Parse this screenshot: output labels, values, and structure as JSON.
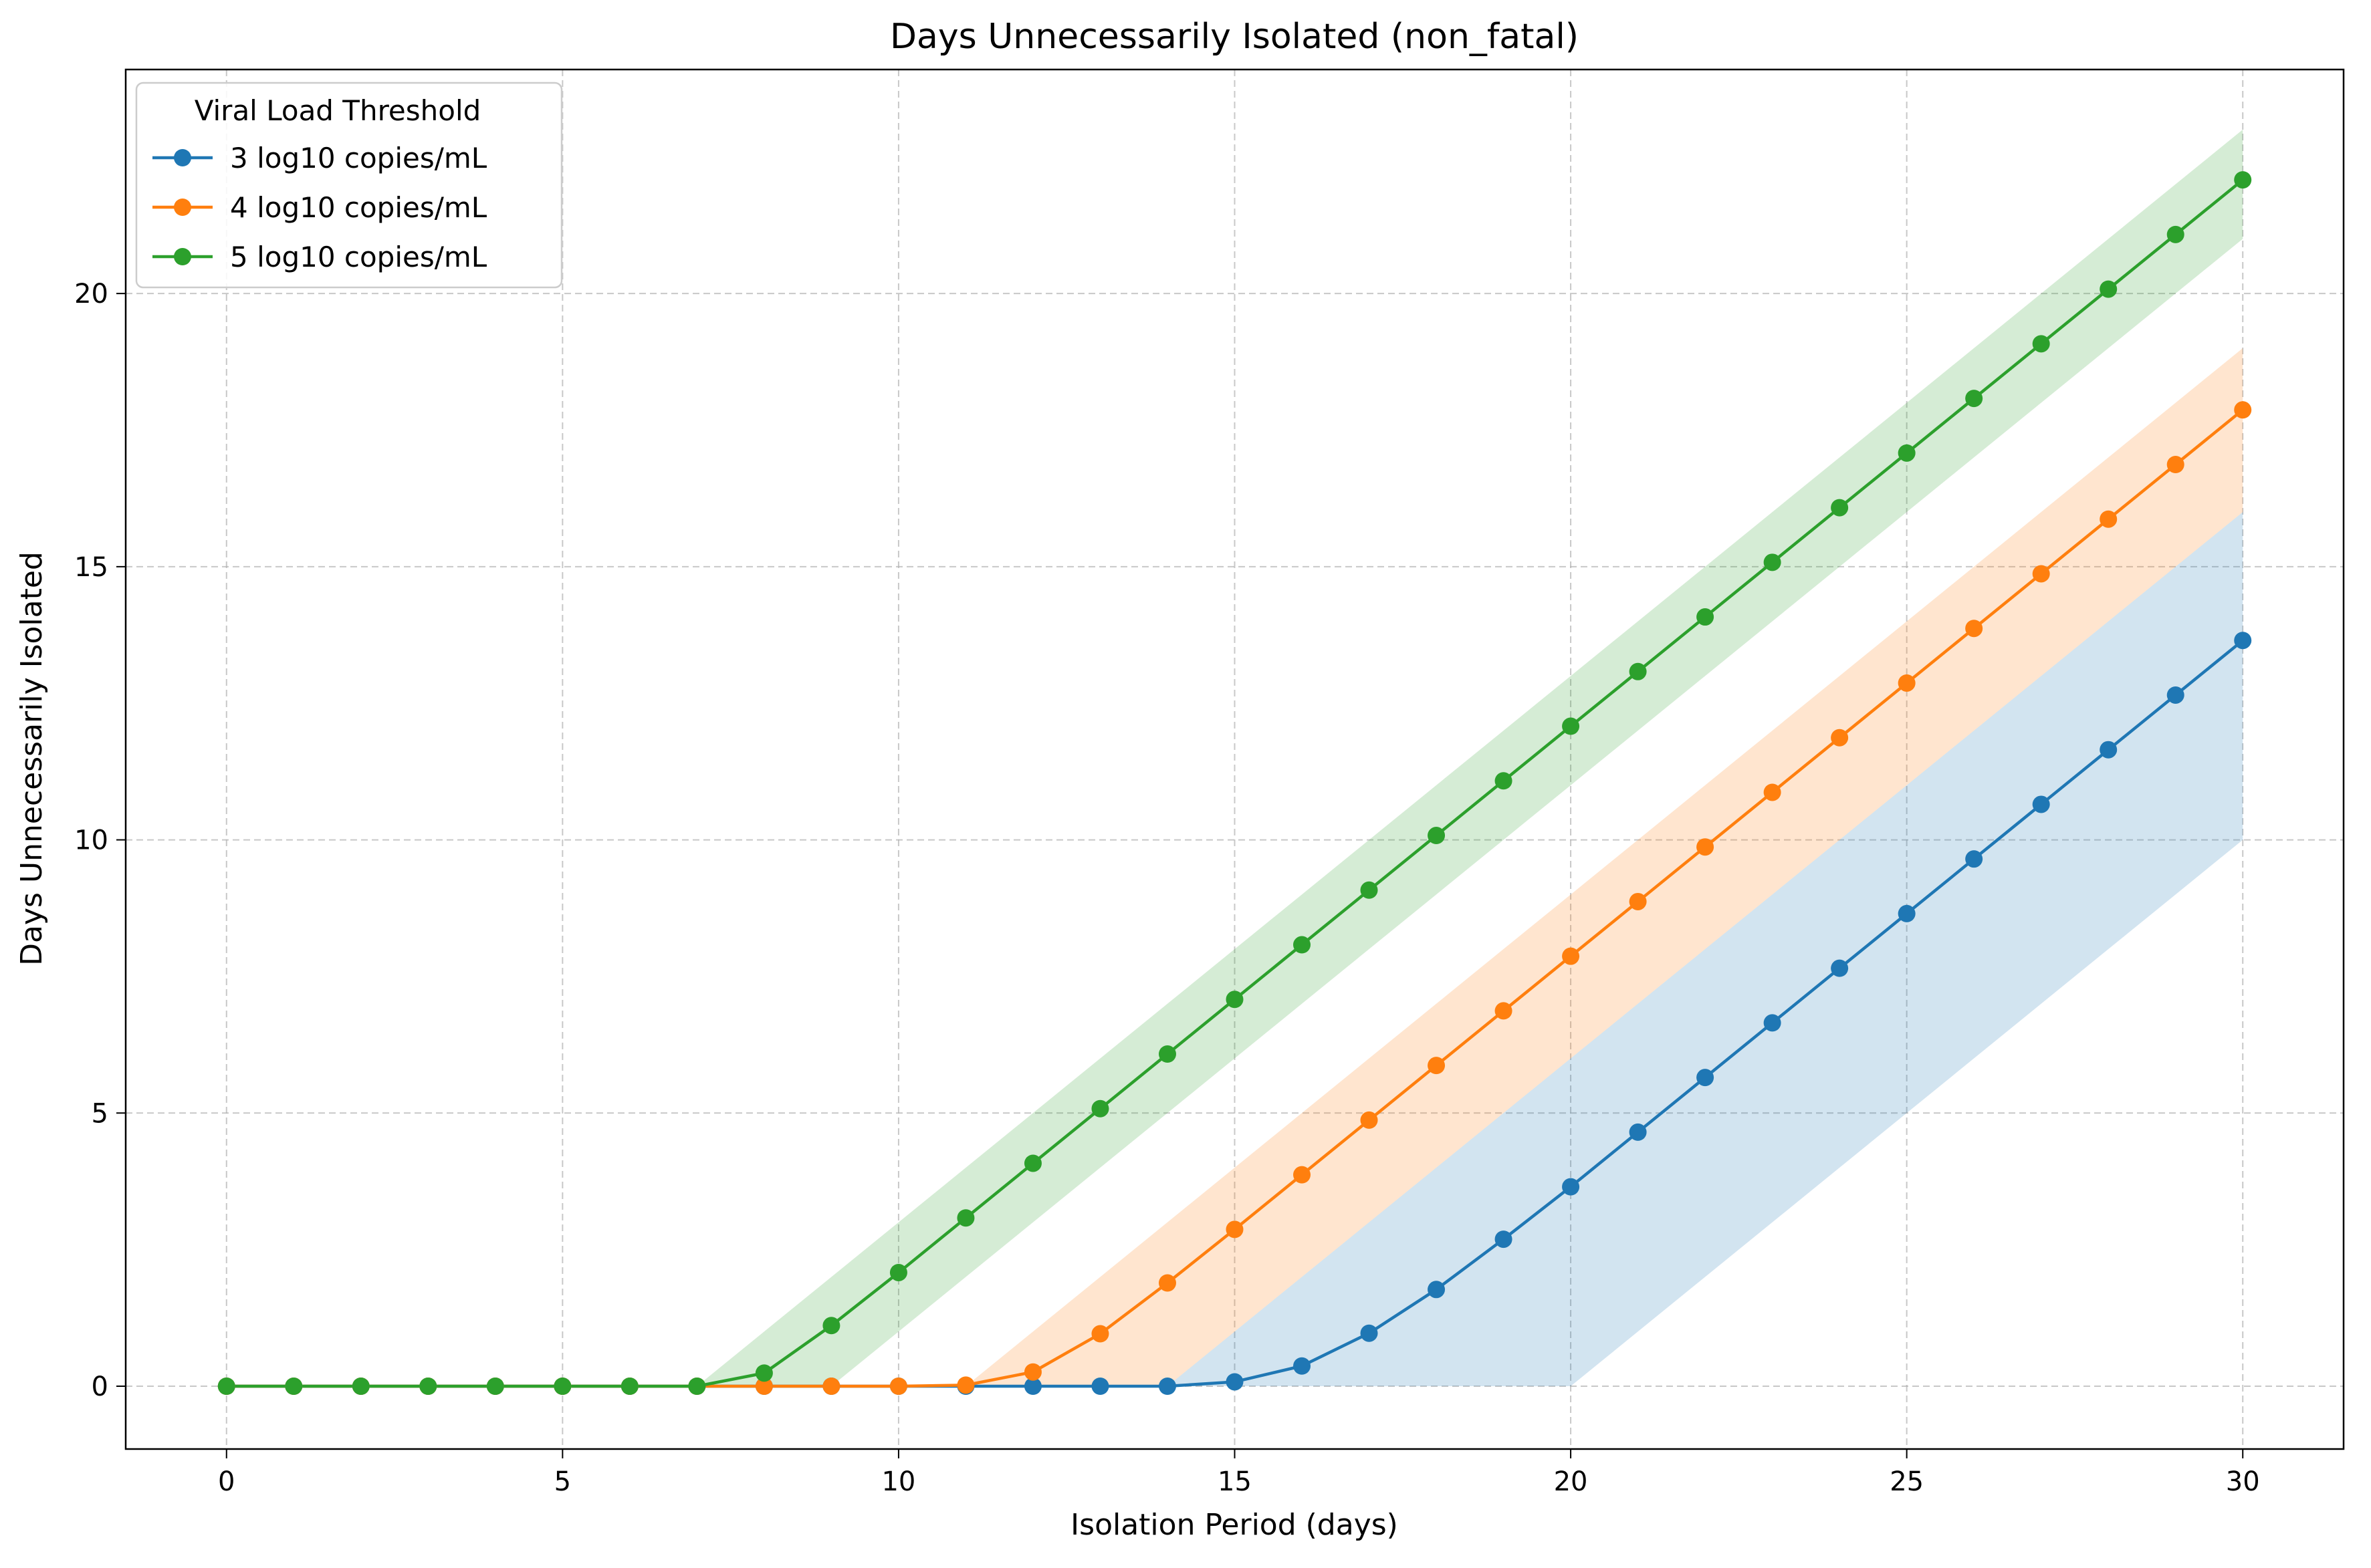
{
  "chart_data": {
    "type": "line",
    "title": "Days Unnecessarily Isolated (non_fatal)",
    "xlabel": "Isolation Period (days)",
    "ylabel": "Days Unnecessarily Isolated",
    "xlim": [
      -1.5,
      31.5
    ],
    "ylim": [
      -1.15,
      24.1
    ],
    "xticks": [
      0,
      5,
      10,
      15,
      20,
      25,
      30
    ],
    "yticks": [
      0,
      5,
      10,
      15,
      20
    ],
    "grid": true,
    "legend": {
      "title": "Viral Load Threshold",
      "position": "top-left"
    },
    "x": [
      0,
      1,
      2,
      3,
      4,
      5,
      6,
      7,
      8,
      9,
      10,
      11,
      12,
      13,
      14,
      15,
      16,
      17,
      18,
      19,
      20,
      21,
      22,
      23,
      24,
      25,
      26,
      27,
      28,
      29,
      30
    ],
    "series": [
      {
        "name": "3 log10 copies/mL",
        "color": "#1f77b4",
        "values": [
          0,
          0,
          0,
          0,
          0,
          0,
          0,
          0,
          0,
          0,
          0,
          0,
          0,
          0,
          0,
          0.08,
          0.37,
          0.97,
          1.77,
          2.69,
          3.65,
          4.65,
          5.65,
          6.65,
          7.65,
          8.65,
          9.65,
          10.65,
          11.65,
          12.65,
          13.65
        ],
        "lower": [
          0,
          0,
          0,
          0,
          0,
          0,
          0,
          0,
          0,
          0,
          0,
          0,
          0,
          0,
          0,
          0,
          0,
          0,
          0,
          0,
          0,
          1,
          2,
          3,
          4,
          5,
          6,
          7,
          8,
          9,
          10
        ],
        "upper": [
          0,
          0,
          0,
          0,
          0,
          0,
          0,
          0,
          0,
          0,
          0,
          0,
          0,
          0,
          0,
          1,
          2,
          3,
          4,
          5,
          6,
          7,
          8,
          9,
          10,
          11,
          12,
          13,
          14,
          15,
          16
        ]
      },
      {
        "name": "4 log10 copies/mL",
        "color": "#ff7f0e",
        "values": [
          0,
          0,
          0,
          0,
          0,
          0,
          0,
          0,
          0,
          0,
          0,
          0.02,
          0.26,
          0.96,
          1.89,
          2.87,
          3.87,
          4.87,
          5.87,
          6.87,
          7.87,
          8.87,
          9.87,
          10.87,
          11.87,
          12.87,
          13.87,
          14.87,
          15.87,
          16.87,
          17.87
        ],
        "lower": [
          0,
          0,
          0,
          0,
          0,
          0,
          0,
          0,
          0,
          0,
          0,
          0,
          0,
          0,
          0,
          1,
          2,
          3,
          4,
          5,
          6,
          7,
          8,
          9,
          10,
          11,
          12,
          13,
          14,
          15,
          16
        ],
        "upper": [
          0,
          0,
          0,
          0,
          0,
          0,
          0,
          0,
          0,
          0,
          0,
          0,
          1,
          2,
          3,
          4,
          5,
          6,
          7,
          8,
          9,
          10,
          11,
          12,
          13,
          14,
          15,
          16,
          17,
          18,
          19
        ]
      },
      {
        "name": "5 log10 copies/mL",
        "color": "#2ca02c",
        "values": [
          0,
          0,
          0,
          0,
          0,
          0,
          0,
          0,
          0.24,
          1.11,
          2.08,
          3.08,
          4.08,
          5.08,
          6.08,
          7.08,
          8.08,
          9.08,
          10.08,
          11.08,
          12.08,
          13.08,
          14.08,
          15.08,
          16.08,
          17.08,
          18.08,
          19.08,
          20.08,
          21.08,
          22.08
        ],
        "lower": [
          0,
          0,
          0,
          0,
          0,
          0,
          0,
          0,
          0,
          0,
          1,
          2,
          3,
          4,
          5,
          6,
          7,
          8,
          9,
          10,
          11,
          12,
          13,
          14,
          15,
          16,
          17,
          18,
          19,
          20,
          21
        ],
        "upper": [
          0,
          0,
          0,
          0,
          0,
          0,
          0,
          0,
          1,
          2,
          3,
          4,
          5,
          6,
          7,
          8,
          9,
          10,
          11,
          12,
          13,
          14,
          15,
          16,
          17,
          18,
          19,
          20,
          21,
          22,
          23
        ]
      }
    ]
  }
}
